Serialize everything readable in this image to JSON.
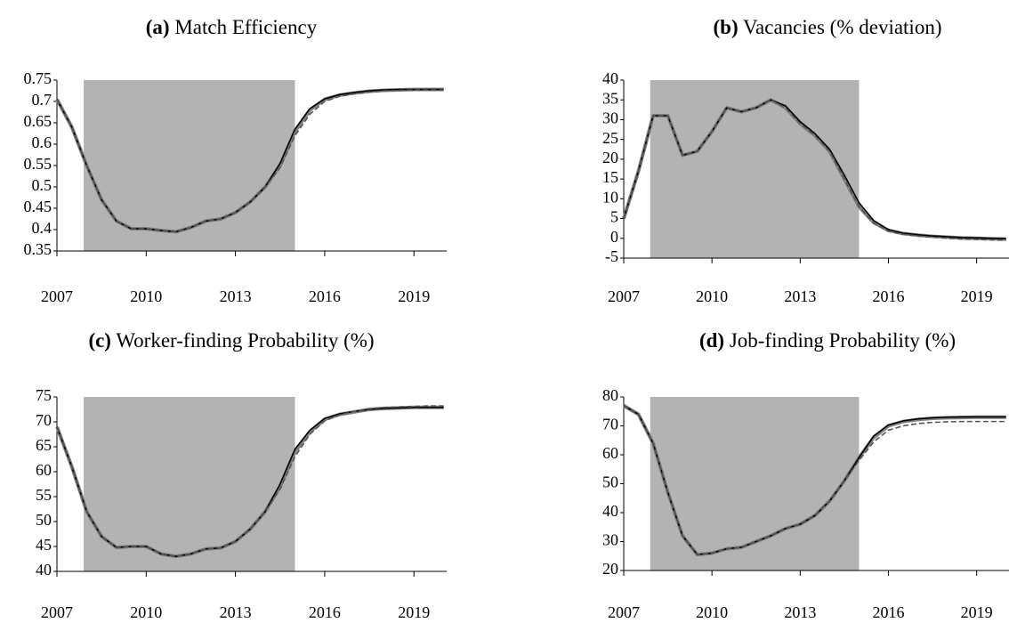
{
  "chart_data": [
    {
      "type": "line",
      "label": "(a)",
      "title": "Match Efficiency",
      "x": [
        2007,
        2007.5,
        2008,
        2008.5,
        2009,
        2009.5,
        2010,
        2010.5,
        2011,
        2011.5,
        2012,
        2012.5,
        2013,
        2013.5,
        2014,
        2014.5,
        2015,
        2015.5,
        2016,
        2016.5,
        2017,
        2017.5,
        2018,
        2018.5,
        2019,
        2019.5,
        2020
      ],
      "xlim": [
        2007,
        2020.1
      ],
      "xticks": [
        2007,
        2010,
        2013,
        2016,
        2019
      ],
      "ylim": [
        0.35,
        0.75
      ],
      "yticks": [
        0.35,
        0.4,
        0.45,
        0.5,
        0.55,
        0.6,
        0.65,
        0.7,
        0.75
      ],
      "shade": [
        2007.9,
        2015
      ],
      "shade_color": "#b3b3b3",
      "series": [
        {
          "color": "#808080",
          "linestyle": "solid",
          "values": [
            0.705,
            0.64,
            0.55,
            0.47,
            0.42,
            0.402,
            0.402,
            0.398,
            0.395,
            0.405,
            0.42,
            0.425,
            0.44,
            0.465,
            0.5,
            0.55,
            0.63,
            0.68,
            0.705,
            0.715,
            0.72,
            0.724,
            0.726,
            0.727,
            0.728,
            0.728,
            0.728
          ]
        },
        {
          "color": "#000000",
          "linestyle": "solid",
          "values": [
            0.705,
            0.64,
            0.55,
            0.47,
            0.42,
            0.402,
            0.402,
            0.398,
            0.395,
            0.405,
            0.42,
            0.425,
            0.44,
            0.465,
            0.5,
            0.555,
            0.635,
            0.683,
            0.706,
            0.716,
            0.721,
            0.725,
            0.727,
            0.728,
            0.728,
            0.728,
            0.728
          ]
        },
        {
          "color": "#555555",
          "linestyle": "dashed",
          "values": [
            0.705,
            0.64,
            0.55,
            0.47,
            0.42,
            0.402,
            0.402,
            0.398,
            0.395,
            0.405,
            0.42,
            0.425,
            0.44,
            0.465,
            0.5,
            0.545,
            0.62,
            0.67,
            0.7,
            0.712,
            0.718,
            0.722,
            0.725,
            0.726,
            0.727,
            0.727,
            0.727
          ]
        }
      ]
    },
    {
      "type": "line",
      "label": "(b)",
      "title": "Vacancies (% deviation)",
      "x": [
        2007,
        2007.5,
        2008,
        2008.5,
        2009,
        2009.5,
        2010,
        2010.5,
        2011,
        2011.5,
        2012,
        2012.5,
        2013,
        2013.5,
        2014,
        2014.5,
        2015,
        2015.5,
        2016,
        2016.5,
        2017,
        2017.5,
        2018,
        2018.5,
        2019,
        2019.5,
        2020
      ],
      "xlim": [
        2007,
        2020.1
      ],
      "xticks": [
        2007,
        2010,
        2013,
        2016,
        2019
      ],
      "ylim": [
        -5,
        40
      ],
      "yticks": [
        -5,
        0,
        5,
        10,
        15,
        20,
        25,
        30,
        35,
        40
      ],
      "shade": [
        2007.9,
        2015
      ],
      "shade_color": "#b3b3b3",
      "series": [
        {
          "color": "#808080",
          "linestyle": "solid",
          "values": [
            5,
            17,
            31,
            31,
            21,
            22,
            27,
            33,
            32,
            33,
            35,
            33,
            29,
            26,
            22,
            15,
            8,
            4,
            2,
            1.2,
            0.8,
            0.5,
            0.3,
            0.1,
            0,
            -0.1,
            -0.2
          ]
        },
        {
          "color": "#000000",
          "linestyle": "solid",
          "values": [
            5,
            17,
            31,
            31,
            21,
            22,
            27,
            33,
            32,
            33,
            35,
            33.5,
            29.5,
            26.5,
            22.5,
            16,
            9,
            4.5,
            2.2,
            1.3,
            0.9,
            0.6,
            0.4,
            0.2,
            0.1,
            0,
            -0.1
          ]
        },
        {
          "color": "#555555",
          "linestyle": "dashed",
          "values": [
            5,
            17,
            31,
            31,
            21,
            22,
            27,
            33,
            32,
            33,
            35,
            33,
            29,
            26,
            22,
            15,
            8,
            3.8,
            1.8,
            1,
            0.6,
            0.3,
            0,
            -0.2,
            -0.3,
            -0.4,
            -0.5
          ]
        }
      ]
    },
    {
      "type": "line",
      "label": "(c)",
      "title": "Worker-finding Probability (%)",
      "x": [
        2007,
        2007.5,
        2008,
        2008.5,
        2009,
        2009.5,
        2010,
        2010.5,
        2011,
        2011.5,
        2012,
        2012.5,
        2013,
        2013.5,
        2014,
        2014.5,
        2015,
        2015.5,
        2016,
        2016.5,
        2017,
        2017.5,
        2018,
        2018.5,
        2019,
        2019.5,
        2020
      ],
      "xlim": [
        2007,
        2020.1
      ],
      "xticks": [
        2007,
        2010,
        2013,
        2016,
        2019
      ],
      "ylim": [
        40,
        75
      ],
      "yticks": [
        40,
        45,
        50,
        55,
        60,
        65,
        70,
        75
      ],
      "shade": [
        2007.9,
        2015
      ],
      "shade_color": "#b3b3b3",
      "series": [
        {
          "color": "#808080",
          "linestyle": "solid",
          "values": [
            69,
            61,
            52,
            47,
            44.8,
            45,
            45,
            43.5,
            43,
            43.5,
            44.5,
            44.7,
            46,
            48.5,
            52,
            57,
            64,
            68,
            70.5,
            71.5,
            72,
            72.5,
            72.7,
            72.8,
            72.9,
            72.9,
            72.9
          ]
        },
        {
          "color": "#000000",
          "linestyle": "solid",
          "values": [
            69,
            61,
            52,
            47,
            44.8,
            45,
            45,
            43.5,
            43,
            43.5,
            44.5,
            44.7,
            46,
            48.5,
            52,
            57.5,
            64.5,
            68.3,
            70.7,
            71.6,
            72.1,
            72.5,
            72.7,
            72.8,
            72.9,
            72.9,
            72.9
          ]
        },
        {
          "color": "#555555",
          "linestyle": "dashed",
          "values": [
            69,
            61,
            52,
            47,
            44.8,
            45,
            45,
            43.5,
            43,
            43.5,
            44.5,
            44.7,
            46,
            48.5,
            52,
            56.5,
            63,
            67.5,
            70.2,
            71.4,
            72.1,
            72.6,
            72.9,
            73,
            73.1,
            73.2,
            73.2
          ]
        }
      ]
    },
    {
      "type": "line",
      "label": "(d)",
      "title": "Job-finding Probability (%)",
      "x": [
        2007,
        2007.5,
        2008,
        2008.5,
        2009,
        2009.5,
        2010,
        2010.5,
        2011,
        2011.5,
        2012,
        2012.5,
        2013,
        2013.5,
        2014,
        2014.5,
        2015,
        2015.5,
        2016,
        2016.5,
        2017,
        2017.5,
        2018,
        2018.5,
        2019,
        2019.5,
        2020
      ],
      "xlim": [
        2007,
        2020.1
      ],
      "xticks": [
        2007,
        2010,
        2013,
        2016,
        2019
      ],
      "ylim": [
        20,
        80
      ],
      "yticks": [
        20,
        30,
        40,
        50,
        60,
        70,
        80
      ],
      "shade": [
        2007.9,
        2015
      ],
      "shade_color": "#b3b3b3",
      "series": [
        {
          "color": "#808080",
          "linestyle": "solid",
          "values": [
            77,
            74,
            64,
            47,
            32,
            25.5,
            26,
            27.5,
            28,
            30,
            32,
            34.5,
            36,
            39,
            44,
            51,
            59,
            66,
            70,
            71.5,
            72.2,
            72.6,
            72.8,
            72.9,
            73,
            73,
            73
          ]
        },
        {
          "color": "#000000",
          "linestyle": "solid",
          "values": [
            77,
            74,
            64,
            47,
            32,
            25.5,
            26,
            27.5,
            28,
            30,
            32,
            34.5,
            36,
            39,
            44,
            51,
            59,
            66.5,
            70.3,
            71.7,
            72.4,
            72.8,
            73,
            73.1,
            73.1,
            73.1,
            73.1
          ]
        },
        {
          "color": "#555555",
          "linestyle": "dashed",
          "values": [
            77,
            74,
            64,
            47,
            32,
            25.5,
            26,
            27.5,
            28,
            30,
            32,
            34.5,
            36,
            39,
            44,
            51,
            58,
            64.5,
            68.5,
            70,
            70.8,
            71.2,
            71.4,
            71.5,
            71.5,
            71.5,
            71.5
          ]
        }
      ]
    }
  ]
}
